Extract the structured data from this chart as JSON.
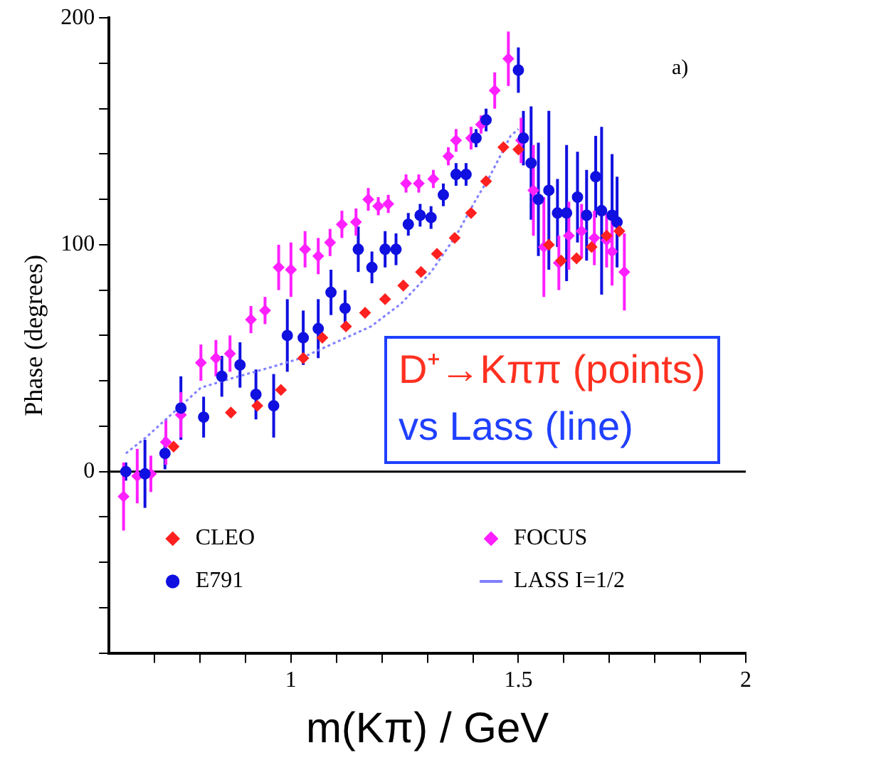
{
  "chart_data": {
    "type": "scatter",
    "xlabel": "m(Kπ) / GeV",
    "ylabel": "Phase (degrees)",
    "xlim": [
      0.6,
      2
    ],
    "xticks": [
      {
        "value": 0.7,
        "label": null
      },
      {
        "value": 0.8,
        "label": null
      },
      {
        "value": 0.9,
        "label": null
      },
      1,
      {
        "value": 1.1,
        "label": null
      },
      {
        "value": 1.2,
        "label": null
      },
      {
        "value": 1.3,
        "label": null
      },
      {
        "value": 1.4,
        "label": null
      },
      1.5,
      {
        "value": 1.6,
        "label": null
      },
      {
        "value": 1.7,
        "label": null
      },
      {
        "value": 1.8,
        "label": null
      },
      {
        "value": 1.9,
        "label": null
      },
      2
    ],
    "ylim": [
      -80,
      200
    ],
    "yticks": [
      {
        "value": -80,
        "label": null
      },
      {
        "value": -60,
        "label": null
      },
      {
        "value": -40,
        "label": null
      },
      {
        "value": -20,
        "label": null
      },
      0,
      {
        "value": 20,
        "label": null
      },
      {
        "value": 40,
        "label": null
      },
      {
        "value": 60,
        "label": null
      },
      {
        "value": 80,
        "label": null
      },
      100,
      {
        "value": 120,
        "label": null
      },
      {
        "value": 140,
        "label": null
      },
      {
        "value": 160,
        "label": null
      },
      {
        "value": 180,
        "label": null
      },
      200
    ],
    "grid": false,
    "legend": "bottom",
    "ref_lines": [
      {
        "axis": "y",
        "value": 0,
        "color": "#000000"
      }
    ],
    "annotations": [
      "a)",
      "D⁺→Kππ (points)",
      "vs Lass (line)"
    ],
    "series": [
      {
        "name": "CLEO",
        "type": "scatter",
        "marker": "diamond",
        "color": "#ff2020",
        "x": [
          0.742,
          0.868,
          0.926,
          0.978,
          1.027,
          1.069,
          1.121,
          1.163,
          1.207,
          1.247,
          1.286,
          1.321,
          1.36,
          1.396,
          1.429,
          1.467,
          1.5,
          1.567,
          1.594,
          1.628,
          1.661,
          1.694,
          1.722
        ],
        "values": [
          11,
          26,
          29,
          36,
          50,
          59,
          64,
          70,
          76,
          82,
          88,
          96,
          103,
          114,
          128,
          143,
          142,
          100,
          93,
          94,
          99,
          104,
          106
        ]
      },
      {
        "name": "E791",
        "type": "scatter",
        "marker": "circle",
        "color": "#1010e0",
        "x": [
          0.637,
          0.679,
          0.723,
          0.758,
          0.808,
          0.848,
          0.888,
          0.923,
          0.962,
          0.992,
          1.027,
          1.06,
          1.088,
          1.119,
          1.148,
          1.178,
          1.207,
          1.231,
          1.258,
          1.284,
          1.308,
          1.335,
          1.363,
          1.385,
          1.407,
          1.429,
          1.5,
          1.511,
          1.528,
          1.544,
          1.567,
          1.586,
          1.606,
          1.63,
          1.65,
          1.67,
          1.683,
          1.706,
          1.717
        ],
        "values": [
          0,
          -1,
          8,
          28,
          24,
          42,
          47,
          34,
          29,
          60,
          59,
          63,
          79,
          72,
          98,
          90,
          98,
          98,
          109,
          113,
          112,
          122,
          131,
          131,
          147,
          155,
          177,
          147,
          136,
          120,
          124,
          114,
          114,
          121,
          113,
          130,
          115,
          113,
          110
        ],
        "errors": [
          4,
          15,
          7,
          14,
          9,
          9,
          10,
          11,
          14,
          16,
          12,
          13,
          10,
          8,
          10,
          7,
          8,
          7,
          5,
          5,
          5,
          5,
          5,
          5,
          4,
          5,
          10,
          12,
          25,
          25,
          35,
          15,
          30,
          20,
          20,
          18,
          37,
          27,
          20
        ]
      },
      {
        "name": "FOCUS",
        "type": "scatter",
        "marker": "diamond",
        "color": "#ff20ff",
        "x": [
          0.632,
          0.662,
          0.692,
          0.725,
          0.758,
          0.802,
          0.835,
          0.866,
          0.912,
          0.943,
          0.973,
          1.0,
          1.031,
          1.06,
          1.086,
          1.112,
          1.143,
          1.17,
          1.192,
          1.214,
          1.253,
          1.281,
          1.313,
          1.346,
          1.363,
          1.396,
          1.418,
          1.448,
          1.478,
          1.506,
          1.533,
          1.556,
          1.589,
          1.611,
          1.639,
          1.667,
          1.694,
          1.706,
          1.733
        ],
        "values": [
          -11,
          -2,
          -1,
          13,
          25,
          48,
          50,
          52,
          67,
          71,
          90,
          89,
          98,
          95,
          101,
          109,
          110,
          120,
          117,
          118,
          127,
          127,
          129,
          139,
          146,
          147,
          153,
          168,
          182,
          146,
          124,
          99,
          92,
          104,
          106,
          103,
          102,
          97,
          88
        ],
        "errors": [
          15,
          12,
          8,
          10,
          10,
          8,
          8,
          8,
          6,
          6,
          10,
          12,
          8,
          8,
          6,
          6,
          6,
          5,
          4,
          4,
          4,
          4,
          4,
          4,
          5,
          5,
          4,
          8,
          12,
          10,
          20,
          22,
          12,
          15,
          12,
          12,
          12,
          15,
          17
        ]
      },
      {
        "name": "LASS I=1/2",
        "type": "line",
        "marker": "none",
        "line_style": "dotted",
        "color": "#8080ff",
        "x": [
          0.637,
          0.681,
          0.725,
          0.802,
          0.868,
          0.956,
          1.022,
          1.099,
          1.176,
          1.242,
          1.308,
          1.363,
          1.407,
          1.434,
          1.483,
          1.5
        ],
        "values": [
          8,
          15,
          23,
          37,
          41,
          46,
          50,
          57,
          64,
          74,
          88,
          104,
          120,
          129,
          148,
          151
        ]
      }
    ]
  }
}
